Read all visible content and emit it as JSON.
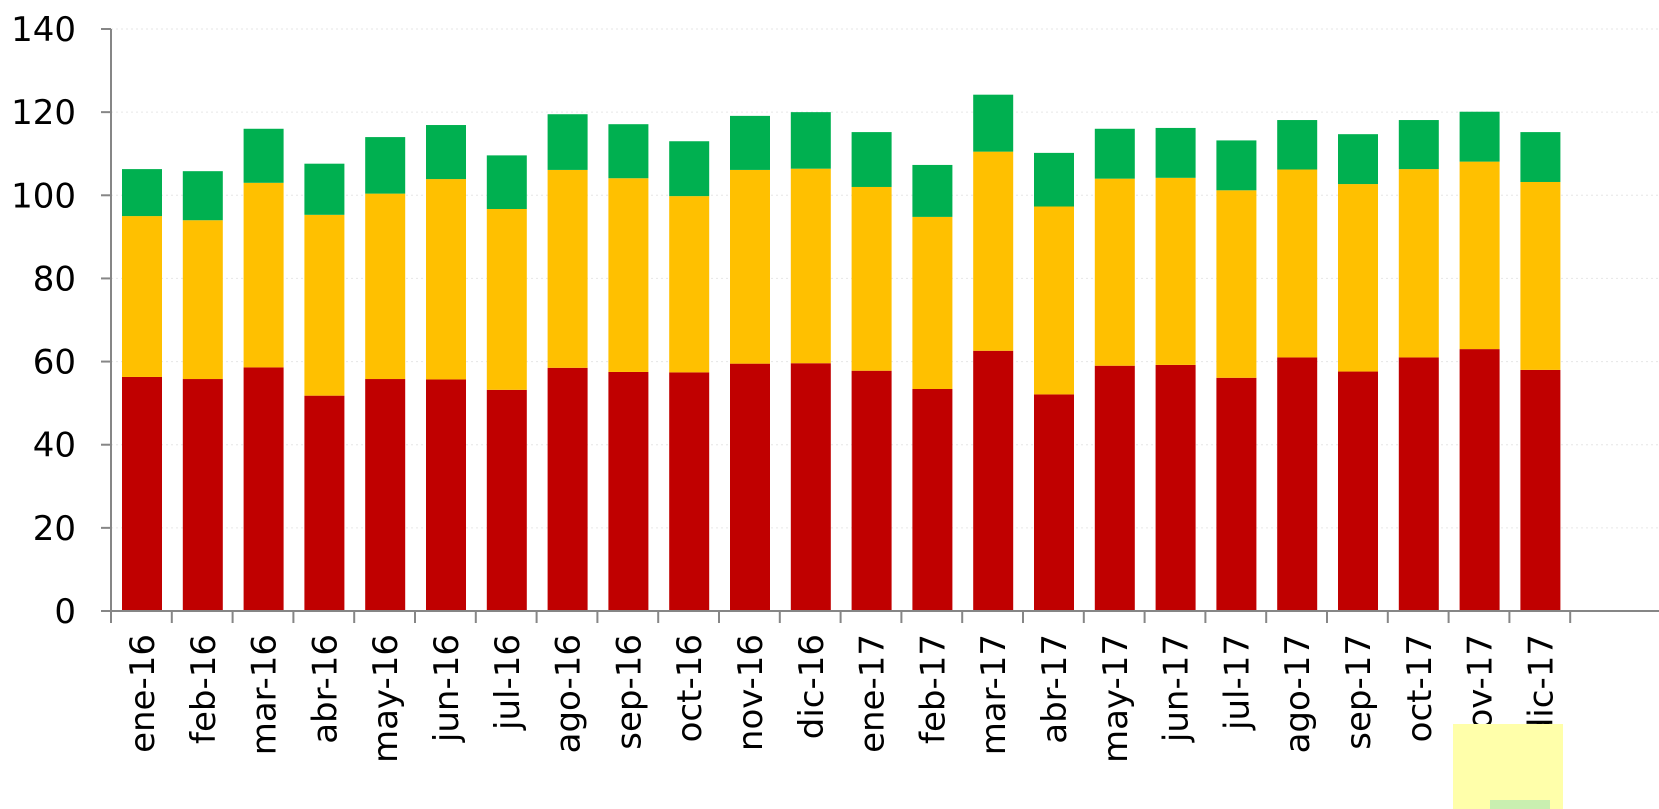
{
  "chart_data": {
    "type": "bar",
    "stacked": true,
    "categories": [
      "ene-16",
      "feb-16",
      "mar-16",
      "abr-16",
      "may-16",
      "jun-16",
      "jul-16",
      "ago-16",
      "sep-16",
      "oct-16",
      "nov-16",
      "dic-16",
      "ene-17",
      "feb-17",
      "mar-17",
      "abr-17",
      "may-17",
      "jun-17",
      "jul-17",
      "ago-17",
      "sep-17",
      "oct-17",
      "nov-17",
      "dic-17"
    ],
    "series": [
      {
        "color": "#c00000",
        "values": [
          56.3,
          55.8,
          58.6,
          51.8,
          55.8,
          55.7,
          53.2,
          58.5,
          57.5,
          57.4,
          59.5,
          59.6,
          57.8,
          53.4,
          62.6,
          52.1,
          59.0,
          59.2,
          56.1,
          61.0,
          57.6,
          61.0,
          63.0,
          58.0
        ]
      },
      {
        "color": "#ffc000",
        "values": [
          38.7,
          38.2,
          44.4,
          43.5,
          44.6,
          48.2,
          43.5,
          47.6,
          46.6,
          42.4,
          46.6,
          46.8,
          44.2,
          41.4,
          47.9,
          45.2,
          45.0,
          45.0,
          45.1,
          45.2,
          45.1,
          45.3,
          45.1,
          45.2
        ]
      },
      {
        "color": "#00b050",
        "values": [
          11.3,
          11.8,
          13.0,
          12.3,
          13.6,
          13.0,
          12.9,
          13.4,
          13.0,
          13.2,
          13.0,
          13.6,
          13.2,
          12.5,
          13.7,
          12.9,
          12.0,
          12.0,
          12.0,
          11.9,
          12.0,
          11.8,
          12.0,
          12.0
        ]
      }
    ],
    "ylim": [
      0,
      140
    ],
    "yticks": [
      0,
      20,
      40,
      60,
      80,
      100,
      120,
      140
    ],
    "grid": true,
    "title": "",
    "xlabel": "",
    "ylabel": ""
  }
}
